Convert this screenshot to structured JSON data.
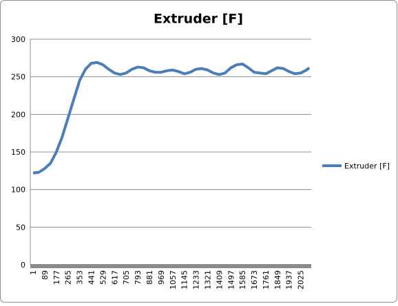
{
  "chart_data": {
    "type": "line",
    "title": "Extruder [F]",
    "x": [
      1,
      45,
      89,
      133,
      177,
      221,
      265,
      309,
      353,
      397,
      441,
      485,
      529,
      573,
      617,
      661,
      705,
      749,
      793,
      837,
      881,
      925,
      969,
      1013,
      1057,
      1101,
      1145,
      1189,
      1233,
      1277,
      1321,
      1365,
      1409,
      1453,
      1497,
      1541,
      1585,
      1629,
      1673,
      1717,
      1761,
      1805,
      1849,
      1893,
      1937,
      1981,
      2025,
      2069,
      2090
    ],
    "series": [
      {
        "name": "Extruder [F]",
        "color": "#4a7ebb",
        "values": [
          122,
          123,
          128,
          135,
          150,
          170,
          195,
          220,
          245,
          260,
          268,
          269,
          266,
          260,
          255,
          253,
          255,
          260,
          263,
          262,
          258,
          256,
          256,
          258,
          259,
          257,
          254,
          256,
          260,
          261,
          259,
          255,
          253,
          255,
          262,
          266,
          267,
          262,
          256,
          255,
          254,
          258,
          262,
          261,
          257,
          254,
          255,
          259,
          262
        ]
      }
    ],
    "xlim": [
      -20,
      2105
    ],
    "xticks": [
      1,
      89,
      177,
      265,
      353,
      441,
      529,
      617,
      705,
      793,
      881,
      969,
      1057,
      1145,
      1233,
      1321,
      1409,
      1497,
      1585,
      1673,
      1761,
      1849,
      1937,
      2025
    ],
    "ylim": [
      0,
      300
    ],
    "yticks": [
      0,
      50,
      100,
      150,
      200,
      250,
      300
    ],
    "grid": true,
    "legend": "right"
  }
}
